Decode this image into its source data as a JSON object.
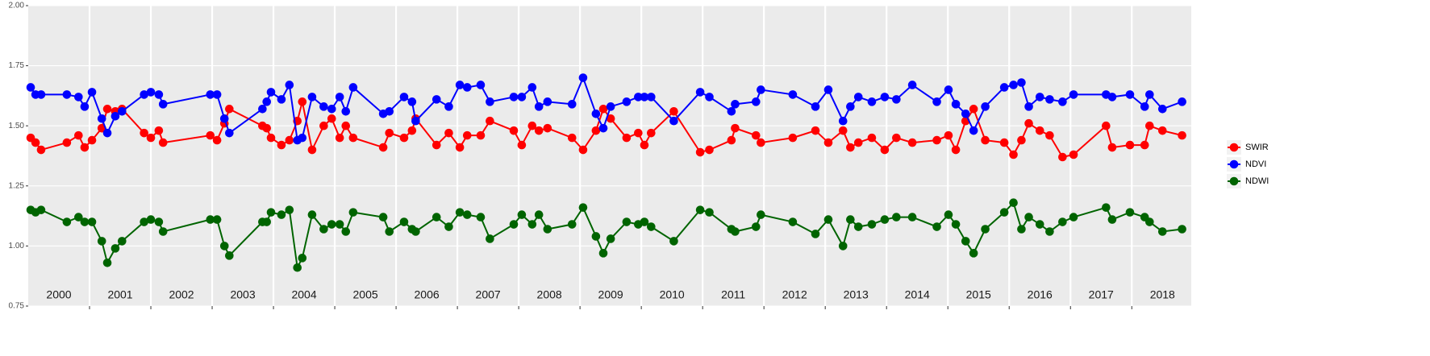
{
  "chart_data": {
    "type": "line",
    "x": [
      2000.04,
      2000.12,
      2000.21,
      2000.63,
      2000.82,
      2000.92,
      2001.04,
      2001.2,
      2001.29,
      2001.42,
      2001.53,
      2001.89,
      2002.0,
      2002.13,
      2002.2,
      2002.97,
      2003.08,
      2003.2,
      2003.28,
      2003.82,
      2003.89,
      2003.96,
      2004.13,
      2004.26,
      2004.39,
      2004.47,
      2004.63,
      2004.82,
      2004.95,
      2005.08,
      2005.18,
      2005.3,
      2005.79,
      2005.89,
      2006.13,
      2006.26,
      2006.32,
      2006.66,
      2006.86,
      2007.04,
      2007.16,
      2007.38,
      2007.53,
      2007.92,
      2008.05,
      2008.22,
      2008.33,
      2008.47,
      2008.87,
      2009.05,
      2009.26,
      2009.38,
      2009.5,
      2009.76,
      2009.95,
      2010.05,
      2010.16,
      2010.53,
      2010.96,
      2011.11,
      2011.47,
      2011.53,
      2011.87,
      2011.95,
      2012.47,
      2012.84,
      2013.05,
      2013.29,
      2013.41,
      2013.54,
      2013.76,
      2013.97,
      2014.16,
      2014.42,
      2014.82,
      2015.01,
      2015.13,
      2015.29,
      2015.42,
      2015.61,
      2015.92,
      2016.07,
      2016.2,
      2016.32,
      2016.5,
      2016.66,
      2016.87,
      2017.05,
      2017.58,
      2017.68,
      2017.97,
      2018.21,
      2018.29,
      2018.5,
      2018.82
    ],
    "series": [
      {
        "name": "SWIR",
        "color": "#ff0000",
        "values": [
          1.45,
          1.43,
          1.4,
          1.43,
          1.46,
          1.41,
          1.44,
          1.49,
          1.57,
          1.56,
          1.57,
          1.47,
          1.45,
          1.48,
          1.43,
          1.46,
          1.44,
          1.51,
          1.57,
          1.5,
          1.49,
          1.45,
          1.42,
          1.44,
          1.52,
          1.6,
          1.4,
          1.5,
          1.53,
          1.45,
          1.5,
          1.45,
          1.41,
          1.47,
          1.45,
          1.48,
          1.53,
          1.42,
          1.47,
          1.41,
          1.46,
          1.46,
          1.52,
          1.48,
          1.42,
          1.5,
          1.48,
          1.49,
          1.45,
          1.4,
          1.48,
          1.57,
          1.53,
          1.45,
          1.47,
          1.42,
          1.47,
          1.56,
          1.39,
          1.4,
          1.44,
          1.49,
          1.46,
          1.43,
          1.45,
          1.48,
          1.43,
          1.48,
          1.41,
          1.43,
          1.45,
          1.4,
          1.45,
          1.43,
          1.44,
          1.46,
          1.4,
          1.52,
          1.57,
          1.44,
          1.43,
          1.38,
          1.44,
          1.51,
          1.48,
          1.46,
          1.37,
          1.38,
          1.5,
          1.41,
          1.42,
          1.42,
          1.5,
          1.48,
          1.46
        ]
      },
      {
        "name": "NDVI",
        "color": "#0000ff",
        "values": [
          1.66,
          1.63,
          1.63,
          1.63,
          1.62,
          1.58,
          1.64,
          1.53,
          1.47,
          1.54,
          1.56,
          1.63,
          1.64,
          1.63,
          1.59,
          1.63,
          1.63,
          1.53,
          1.47,
          1.57,
          1.6,
          1.64,
          1.61,
          1.67,
          1.44,
          1.45,
          1.62,
          1.58,
          1.57,
          1.62,
          1.56,
          1.66,
          1.55,
          1.56,
          1.62,
          1.6,
          1.52,
          1.61,
          1.58,
          1.67,
          1.66,
          1.67,
          1.6,
          1.62,
          1.62,
          1.66,
          1.58,
          1.6,
          1.59,
          1.7,
          1.55,
          1.49,
          1.58,
          1.6,
          1.62,
          1.62,
          1.62,
          1.52,
          1.64,
          1.62,
          1.56,
          1.59,
          1.6,
          1.65,
          1.63,
          1.58,
          1.65,
          1.52,
          1.58,
          1.62,
          1.6,
          1.62,
          1.61,
          1.67,
          1.6,
          1.65,
          1.59,
          1.55,
          1.48,
          1.58,
          1.66,
          1.67,
          1.68,
          1.58,
          1.62,
          1.61,
          1.6,
          1.63,
          1.63,
          1.62,
          1.63,
          1.58,
          1.63,
          1.57,
          1.6
        ]
      },
      {
        "name": "NDWI",
        "color": "#006400",
        "values": [
          1.15,
          1.14,
          1.15,
          1.1,
          1.12,
          1.1,
          1.1,
          1.02,
          0.93,
          0.99,
          1.02,
          1.1,
          1.11,
          1.1,
          1.06,
          1.11,
          1.11,
          1.0,
          0.96,
          1.1,
          1.1,
          1.14,
          1.13,
          1.15,
          0.91,
          0.95,
          1.13,
          1.07,
          1.09,
          1.09,
          1.06,
          1.14,
          1.12,
          1.06,
          1.1,
          1.07,
          1.06,
          1.12,
          1.08,
          1.14,
          1.13,
          1.12,
          1.03,
          1.09,
          1.13,
          1.09,
          1.13,
          1.07,
          1.09,
          1.16,
          1.04,
          0.97,
          1.03,
          1.1,
          1.09,
          1.1,
          1.08,
          1.02,
          1.15,
          1.14,
          1.07,
          1.06,
          1.08,
          1.13,
          1.1,
          1.05,
          1.11,
          1.0,
          1.11,
          1.08,
          1.09,
          1.11,
          1.12,
          1.12,
          1.08,
          1.13,
          1.09,
          1.02,
          0.97,
          1.07,
          1.14,
          1.18,
          1.07,
          1.12,
          1.09,
          1.06,
          1.1,
          1.12,
          1.16,
          1.11,
          1.14,
          1.12,
          1.1,
          1.06,
          1.07
        ]
      }
    ],
    "xlim": [
      2000,
      2018.97
    ],
    "xticks": [
      2001,
      2002,
      2003,
      2004,
      2005,
      2006,
      2007,
      2008,
      2009,
      2010,
      2011,
      2012,
      2013,
      2014,
      2015,
      2016,
      2017,
      2018
    ],
    "xtick_labels": false,
    "ylim": [
      0.75,
      2
    ],
    "yticks": [
      0.75,
      {
        "value": 1,
        "label": "1.00"
      },
      1.25,
      {
        "value": 1.5,
        "label": "1.50"
      },
      1.75,
      {
        "value": 2,
        "label": "2.00"
      }
    ],
    "grid": true,
    "annotations": [
      {
        "label": "2000",
        "x": 2000.5
      },
      {
        "label": "2001",
        "x": 2001.5
      },
      {
        "label": "2002",
        "x": 2002.5
      },
      {
        "label": "2003",
        "x": 2003.5
      },
      {
        "label": "2004",
        "x": 2004.5
      },
      {
        "label": "2005",
        "x": 2005.5
      },
      {
        "label": "2006",
        "x": 2006.5
      },
      {
        "label": "2007",
        "x": 2007.5
      },
      {
        "label": "2008",
        "x": 2008.5
      },
      {
        "label": "2009",
        "x": 2009.5
      },
      {
        "label": "2010",
        "x": 2010.5
      },
      {
        "label": "2011",
        "x": 2011.5
      },
      {
        "label": "2012",
        "x": 2012.5
      },
      {
        "label": "2013",
        "x": 2013.5
      },
      {
        "label": "2014",
        "x": 2014.5
      },
      {
        "label": "2015",
        "x": 2015.5
      },
      {
        "label": "2016",
        "x": 2016.5
      },
      {
        "label": "2017",
        "x": 2017.5
      },
      {
        "label": "2018",
        "x": 2018.5
      }
    ],
    "legend": "right"
  }
}
